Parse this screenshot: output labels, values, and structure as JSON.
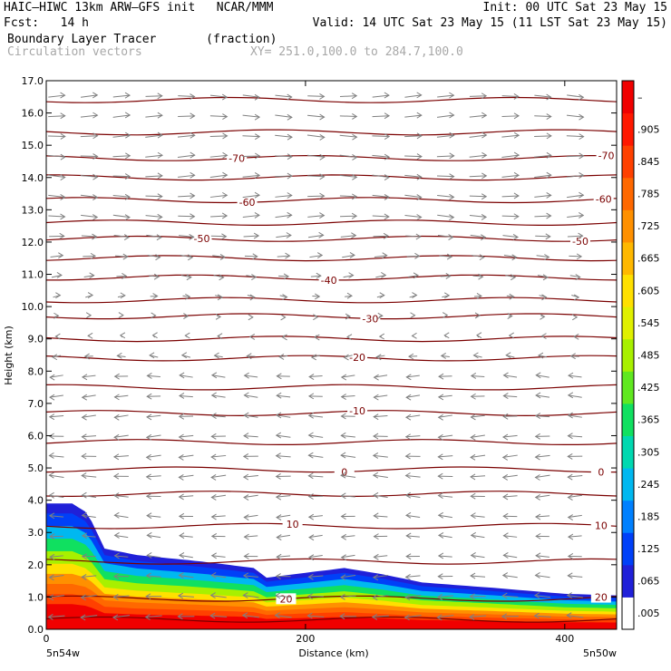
{
  "header": {
    "model_line": "HAIC–HIWC 13km ARW–GFS init   NCAR/MMM",
    "init_line": "Init: 00 UTC Sat 23 May 15",
    "fcst_line": "Fcst:   14 h",
    "valid_line": "Valid: 14 UTC Sat 23 May 15 (11 LST Sat 23 May 15)",
    "field_line": "Boundary Layer Tracer       (fraction)",
    "vector_line": "Circulation vectors",
    "xy_line": "XY= 251.0,100.0 to 284.7,100.0"
  },
  "colors": {
    "contour": "#7a0000",
    "vector": "#808080",
    "colorbar": [
      "#ffffff",
      "#2020d8",
      "#0040f8",
      "#0080ff",
      "#00b8f0",
      "#00d8b0",
      "#10e060",
      "#60e820",
      "#a8f000",
      "#e0f000",
      "#ffe000",
      "#ffb800",
      "#ff9000",
      "#ff6800",
      "#ff4000",
      "#ff1800",
      "#f00000"
    ]
  },
  "chart_data": {
    "type": "heatmap",
    "title": "Boundary Layer Tracer (fraction)",
    "xlabel": "Distance (km)",
    "ylabel": "Height (km)",
    "xlim": [
      0,
      440
    ],
    "ylim": [
      0,
      17
    ],
    "x_ticks": [
      "0",
      "200",
      "400"
    ],
    "x_end_labels": [
      "5n54w",
      "5n50w"
    ],
    "y_ticks": [
      "0.0",
      "1.0",
      "2.0",
      "3.0",
      "4.0",
      "5.0",
      "6.0",
      "7.0",
      "8.0",
      "9.0",
      "10.0",
      "11.0",
      "12.0",
      "13.0",
      "14.0",
      "15.0",
      "16.0",
      "17.0"
    ],
    "colorbar_labels": [
      ".005",
      ".065",
      ".125",
      ".185",
      ".245",
      ".305",
      ".365",
      ".425",
      ".485",
      ".545",
      ".605",
      ".665",
      ".725",
      ".785",
      ".845",
      ".905",
      "–"
    ],
    "tracer_top_km": [
      {
        "x": 0,
        "z": 3.9
      },
      {
        "x": 20,
        "z": 3.9
      },
      {
        "x": 32,
        "z": 3.6
      },
      {
        "x": 45,
        "z": 2.5
      },
      {
        "x": 70,
        "z": 2.3
      },
      {
        "x": 120,
        "z": 2.1
      },
      {
        "x": 160,
        "z": 1.9
      },
      {
        "x": 170,
        "z": 1.6
      },
      {
        "x": 200,
        "z": 1.75
      },
      {
        "x": 230,
        "z": 1.9
      },
      {
        "x": 260,
        "z": 1.7
      },
      {
        "x": 290,
        "z": 1.45
      },
      {
        "x": 340,
        "z": 1.3
      },
      {
        "x": 400,
        "z": 1.1
      },
      {
        "x": 440,
        "z": 1.05
      }
    ],
    "temperature_contours": [
      {
        "label": "-70",
        "z": 14.6,
        "label_x": [
          147,
          432
        ]
      },
      {
        "label": "-60",
        "z": 13.3,
        "label_x": [
          155,
          430
        ]
      },
      {
        "label": "-50",
        "z": 12.1,
        "label_x": [
          120,
          412
        ]
      },
      {
        "label": "-40",
        "z": 10.9,
        "label_x": [
          218
        ]
      },
      {
        "label": "-30",
        "z": 9.7,
        "label_x": [
          250
        ]
      },
      {
        "label": "-20",
        "z": 8.4,
        "label_x": [
          240
        ]
      },
      {
        "label": "-10",
        "z": 6.7,
        "label_x": [
          240
        ]
      },
      {
        "label": "0",
        "z": 4.95,
        "label_x": [
          230,
          428
        ]
      },
      {
        "label": "10",
        "z": 3.2,
        "label_x": [
          190,
          428
        ]
      },
      {
        "label": "20",
        "z": 0.95,
        "label_x": [
          185,
          428
        ]
      }
    ],
    "extra_contour_levels_km": [
      16.4,
      15.4,
      14.0,
      12.6,
      11.5,
      10.2,
      9.0,
      7.5,
      5.8,
      4.2,
      2.1,
      0.3
    ],
    "wind_u_by_height": [
      {
        "z": 0.5,
        "u": -1.0
      },
      {
        "z": 2.5,
        "u": -0.8
      },
      {
        "z": 5.0,
        "u": -0.9
      },
      {
        "z": 8.0,
        "u": -0.8
      },
      {
        "z": 9.5,
        "u": 0.15
      },
      {
        "z": 10.5,
        "u": 0.5
      },
      {
        "z": 12.5,
        "u": 1.0
      },
      {
        "z": 15.0,
        "u": 1.05
      },
      {
        "z": 17.0,
        "u": 1.0
      }
    ],
    "grid": false,
    "legend": "colorbar-right"
  }
}
